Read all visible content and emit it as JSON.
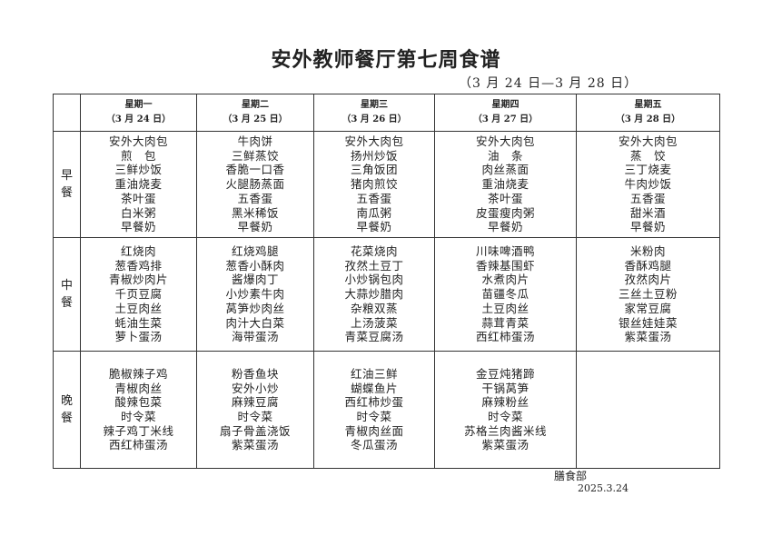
{
  "title": "安外教师餐厅第七周食谱",
  "subtitle": "（3 月 24 日—3 月 28 日）",
  "days": [
    {
      "name": "星期一",
      "date": "（3 月 24 日）"
    },
    {
      "name": "星期二",
      "date": "（3 月 25 日）"
    },
    {
      "name": "星期三",
      "date": "（3 月 26 日）"
    },
    {
      "name": "星期四",
      "date": "（3 月 27 日）"
    },
    {
      "name": "星期五",
      "date": "（3 月 28 日）"
    }
  ],
  "meals": [
    {
      "label": [
        "早",
        "餐"
      ],
      "menus": [
        [
          "安外大肉包",
          "煎　包",
          "三鲜炒饭",
          "重油烧麦",
          "茶叶蛋",
          "白米粥",
          "早餐奶"
        ],
        [
          "牛肉饼",
          "三鲜蒸饺",
          "香脆一口香",
          "火腿肠蒸面",
          "五香蛋",
          "黑米稀饭",
          "早餐奶"
        ],
        [
          "安外大肉包",
          "扬州炒饭",
          "三角饭团",
          "猪肉煎饺",
          "五香蛋",
          "南瓜粥",
          "早餐奶"
        ],
        [
          "安外大肉包",
          "油　条",
          "肉丝蒸面",
          "重油烧麦",
          "茶叶蛋",
          "皮蛋瘦肉粥",
          "早餐奶"
        ],
        [
          "安外大肉包",
          "蒸　饺",
          "三丁烧麦",
          "牛肉炒饭",
          "五香蛋",
          "甜米酒",
          "早餐奶"
        ]
      ]
    },
    {
      "label": [
        "中",
        "餐"
      ],
      "menus": [
        [
          "红烧肉",
          "葱香鸡排",
          "青椒炒肉片",
          "千页豆腐",
          "土豆肉丝",
          "蚝油生菜",
          "萝卜蛋汤"
        ],
        [
          "红烧鸡腿",
          "葱香小酥肉",
          "酱爆肉丁",
          "小炒素牛肉",
          "莴笋炒肉丝",
          "肉汁大白菜",
          "海带蛋汤"
        ],
        [
          "花菜烧肉",
          "孜然土豆丁",
          "小炒锅包肉",
          "大蒜炒腊肉",
          "杂粮双蒸",
          "上汤菠菜",
          "青菜豆腐汤"
        ],
        [
          "川味啤酒鸭",
          "香辣基围虾",
          "水煮肉片",
          "苗疆冬瓜",
          "土豆肉丝",
          "蒜茸青菜",
          "西红柿蛋汤"
        ],
        [
          "米粉肉",
          "香酥鸡腿",
          "孜然肉片",
          "三丝土豆粉",
          "家常豆腐",
          "银丝娃娃菜",
          "紫菜蛋汤"
        ]
      ]
    },
    {
      "label": [
        "晚",
        "餐"
      ],
      "menus": [
        [
          "脆椒辣子鸡",
          "青椒肉丝",
          "酸辣包菜",
          "时令菜",
          "辣子鸡丁米线",
          "西红柿蛋汤"
        ],
        [
          "粉香鱼块",
          "安外小炒",
          "麻辣豆腐",
          "时令菜",
          "扇子骨盖浇饭",
          "紫菜蛋汤"
        ],
        [
          "红油三鲜",
          "蝴蝶鱼片",
          "西红柿炒蛋",
          "时令菜",
          "青椒肉丝面",
          "冬瓜蛋汤"
        ],
        [
          "金豆炖猪蹄",
          "干锅莴笋",
          "麻辣粉丝",
          "时令菜",
          "苏格兰肉酱米线",
          "紫菜蛋汤"
        ],
        []
      ]
    }
  ],
  "footer": {
    "department": "膳食部",
    "date": "2025.3.24"
  }
}
